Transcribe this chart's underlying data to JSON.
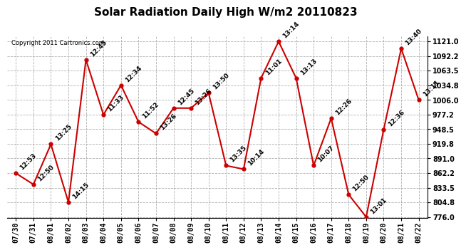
{
  "title": "Solar Radiation Daily High W/m2 20110823",
  "copyright": "Copyright 2011 Cartronics.com",
  "dates": [
    "07/30",
    "07/31",
    "08/01",
    "08/02",
    "08/03",
    "08/04",
    "08/05",
    "08/06",
    "08/07",
    "08/08",
    "08/09",
    "08/10",
    "08/11",
    "08/12",
    "08/13",
    "08/14",
    "08/15",
    "08/16",
    "08/17",
    "08/18",
    "08/19",
    "08/20",
    "08/21",
    "08/22"
  ],
  "values": [
    862,
    840,
    919,
    805,
    1085,
    977,
    1035,
    963,
    940,
    990,
    990,
    1020,
    877,
    870,
    1049,
    1121,
    1049,
    877,
    970,
    820,
    776,
    948,
    1107,
    1006
  ],
  "labels": [
    "12:53",
    "12:50",
    "13:25",
    "14:15",
    "12:45",
    "11:33",
    "12:34",
    "11:52",
    "13:26",
    "12:45",
    "13:26",
    "13:50",
    "13:35",
    "10:14",
    "11:01",
    "13:14",
    "13:13",
    "10:07",
    "12:26",
    "12:50",
    "13:01",
    "12:36",
    "13:40",
    "13:11"
  ],
  "line_color": "#cc0000",
  "marker_color": "#cc0000",
  "bg_color": "#ffffff",
  "grid_color": "#b0b0b0",
  "ylim_min": 776.0,
  "ylim_max": 1121.0,
  "yticks": [
    776.0,
    804.8,
    833.5,
    862.2,
    891.0,
    919.8,
    948.5,
    977.2,
    1006.0,
    1034.8,
    1063.5,
    1092.2,
    1121.0
  ],
  "label_fontsize": 6.5,
  "title_fontsize": 11,
  "copyright_fontsize": 6
}
